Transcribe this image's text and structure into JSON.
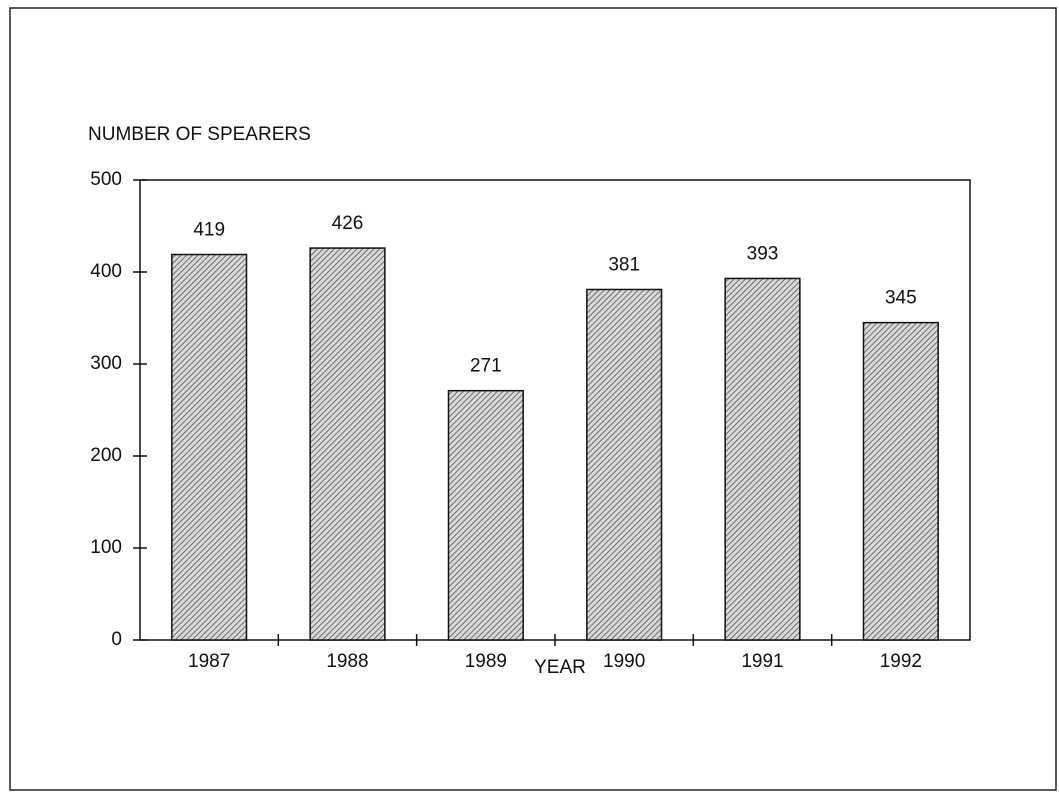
{
  "chart_data": {
    "type": "bar",
    "y_label": "NUMBER OF SPEARERS",
    "x_label": "YEAR",
    "categories": [
      "1987",
      "1988",
      "1989",
      "1990",
      "1991",
      "1992"
    ],
    "values": [
      419,
      426,
      271,
      381,
      393,
      345
    ],
    "color": "#555555",
    "ylim": [
      0,
      500
    ],
    "yticks": [
      0,
      100,
      200,
      300,
      400,
      500
    ],
    "grid": false
  }
}
